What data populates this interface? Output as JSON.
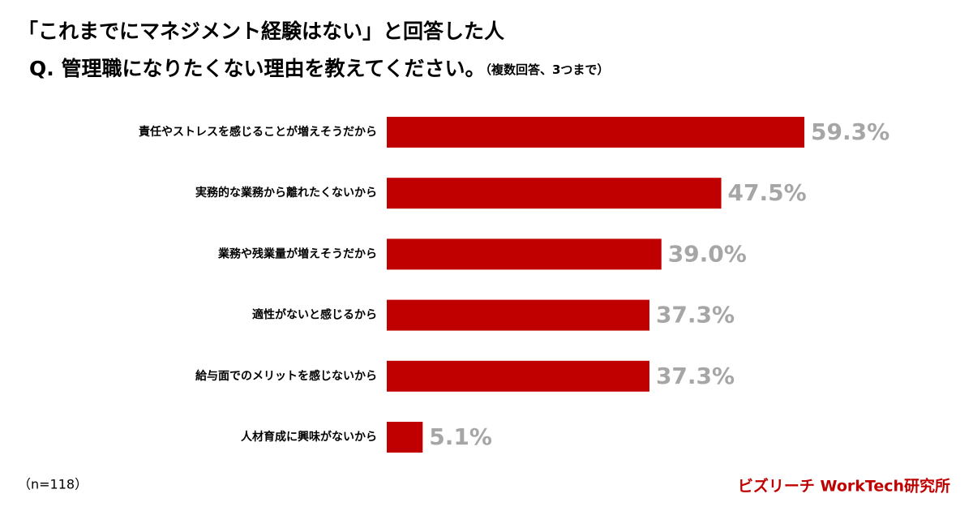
{
  "chart_data": {
    "type": "barh",
    "title": "「これまでにマネジメント経験はない」と回答した人",
    "subtitle": "Q. 管理職になりたくない理由を教えてください。",
    "subtitle_note": "（複数回答、3つまで）",
    "categories": [
      "責任やストレスを感じることが増えそうだから",
      "実務的な業務から離れたくないから",
      "業務や残業量が増えそうだから",
      "適性がないと感じるから",
      "給与面でのメリットを感じないから",
      "人材育成に興味がないから"
    ],
    "values": [
      59.3,
      47.5,
      39.0,
      37.3,
      37.3,
      5.1
    ],
    "value_labels": [
      "59.3%",
      "47.5%",
      "39.0%",
      "37.3%",
      "37.3%",
      "5.1%"
    ],
    "color": "#c00000",
    "note": "（n=118）",
    "source": "ビズリーチ WorkTech研究所"
  }
}
